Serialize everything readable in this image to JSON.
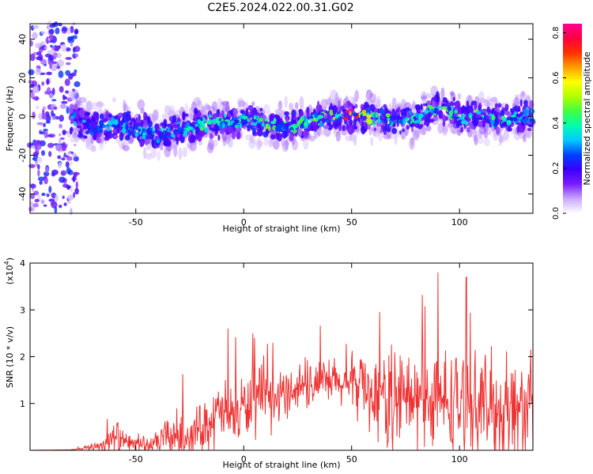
{
  "title": "C2E5.2024.022.00.31.G02",
  "chart_data": [
    {
      "type": "heatmap",
      "xlabel": "Height of straight line (km)",
      "ylabel": "Frequency (Hz)",
      "xlim": [
        -99,
        134
      ],
      "ylim": [
        -50,
        48
      ],
      "xticks": [
        -50,
        0,
        50,
        100
      ],
      "yticks": [
        -40,
        -20,
        0,
        20,
        40
      ],
      "colorbar": {
        "label": "Normalized spectral amplitude",
        "range": [
          0,
          0.84
        ],
        "ticks": [
          "0.0",
          "0.2",
          "0.4",
          "0.6",
          "0.8"
        ],
        "colormap": [
          "#ffffff",
          "#c9a8ff",
          "#7a1cff",
          "#3a00ff",
          "#0040ff",
          "#00c8ff",
          "#00ffb0",
          "#40ff40",
          "#b0ff00",
          "#ffff00",
          "#ffa000",
          "#ff3000",
          "#ff0040",
          "#ff0090"
        ]
      },
      "ridge": {
        "x": [
          -80,
          -70,
          -60,
          -50,
          -40,
          -30,
          -20,
          -10,
          0,
          10,
          20,
          30,
          40,
          50,
          60,
          70,
          80,
          90,
          100,
          110,
          120,
          130
        ],
        "center_freq": [
          0,
          -6,
          -4,
          -6,
          -10,
          -6,
          -4,
          -3,
          -2,
          -4,
          -5,
          -3,
          0,
          0,
          0,
          -2,
          -1,
          5,
          0,
          0,
          -2,
          0
        ],
        "peak_amplitude": [
          0.3,
          0.3,
          0.32,
          0.3,
          0.35,
          0.3,
          0.45,
          0.4,
          0.35,
          0.45,
          0.4,
          0.42,
          0.55,
          0.84,
          0.5,
          0.4,
          0.42,
          0.45,
          0.4,
          0.4,
          0.4,
          0.3
        ]
      }
    },
    {
      "type": "line",
      "xlabel": "Height of straight line (km)",
      "ylabel": "SNR (10 * v/v)",
      "y_multiplier": "(x10",
      "y_multiplier_exp": "4",
      "xlim": [
        -99,
        134
      ],
      "ylim": [
        0,
        40000
      ],
      "xticks": [
        -50,
        0,
        50,
        100
      ],
      "yticks": [
        1,
        2,
        3,
        4
      ],
      "series": [
        {
          "color": "#ee3333",
          "x": [
            -99,
            -90,
            -80,
            -75,
            -70,
            -65,
            -62,
            -58,
            -55,
            -50,
            -45,
            -42,
            -38,
            -35,
            -30,
            -25,
            -20,
            -15,
            -10,
            -5,
            0,
            5,
            10,
            15,
            20,
            25,
            30,
            35,
            40,
            45,
            50,
            55,
            60,
            65,
            70,
            75,
            80,
            85,
            90,
            95,
            100,
            105,
            110,
            115,
            120,
            125,
            130,
            134
          ],
          "base": [
            0,
            50,
            100,
            300,
            800,
            1200,
            2000,
            2500,
            1500,
            1500,
            1200,
            1000,
            2500,
            3000,
            3200,
            3000,
            5000,
            6500,
            8000,
            7500,
            9000,
            10000,
            11000,
            10500,
            12500,
            13500,
            14000,
            14000,
            14500,
            14000,
            14000,
            15000,
            11500,
            11000,
            10500,
            11000,
            10500,
            11000,
            10000,
            10500,
            10000,
            10000,
            9500,
            9500,
            8500,
            9000,
            8500,
            9000
          ],
          "amplitude": [
            0,
            0,
            100,
            300,
            1000,
            2500,
            4500,
            5000,
            2500,
            2500,
            2500,
            2000,
            4500,
            5000,
            7000,
            5000,
            6500,
            8000,
            9000,
            8000,
            9000,
            9000,
            10000,
            7000,
            6000,
            7000,
            6000,
            6000,
            7000,
            6000,
            8000,
            9000,
            11000,
            13000,
            14000,
            14000,
            13000,
            13000,
            14000,
            14000,
            14000,
            13000,
            14000,
            14000,
            15000,
            15000,
            14500,
            14000
          ]
        }
      ]
    }
  ]
}
